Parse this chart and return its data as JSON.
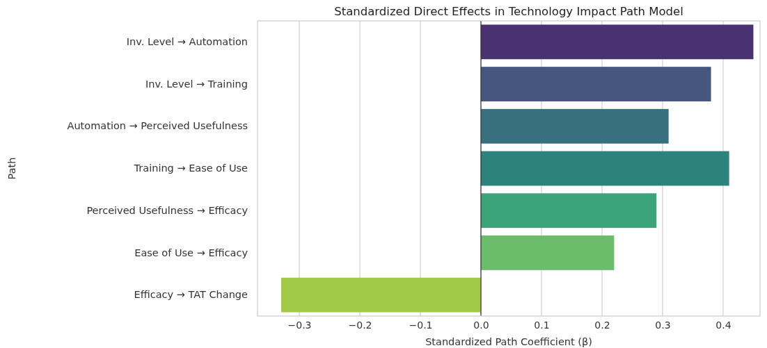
{
  "chart_data": {
    "type": "bar",
    "orientation": "horizontal",
    "title": "Standardized Direct Effects in Technology Impact Path Model",
    "xlabel": "Standardized Path Coefficient (β)",
    "ylabel": "Path",
    "categories": [
      "Inv. Level → Automation",
      "Inv. Level → Training",
      "Automation → Perceived Usefulness",
      "Training → Ease of Use",
      "Perceived Usefulness → Efficacy",
      "Ease of Use → Efficacy",
      "Efficacy → TAT Change"
    ],
    "values": [
      0.45,
      0.38,
      0.31,
      0.41,
      0.29,
      0.22,
      -0.33
    ],
    "colors": [
      "#4a3270",
      "#45577f",
      "#38707f",
      "#2c837b",
      "#3aa47a",
      "#6bbd6b",
      "#a2c847"
    ],
    "xlim": [
      -0.369,
      0.461
    ],
    "xticks": [
      {
        "value": -0.3,
        "label": "−0.3"
      },
      {
        "value": -0.2,
        "label": "−0.2"
      },
      {
        "value": -0.1,
        "label": "−0.1"
      },
      "0.0",
      "0.1",
      "0.2",
      "0.3",
      "0.4"
    ],
    "grid": "x",
    "ref_lines": [
      {
        "axis": "x",
        "value": 0,
        "color": "#333333"
      }
    ]
  }
}
